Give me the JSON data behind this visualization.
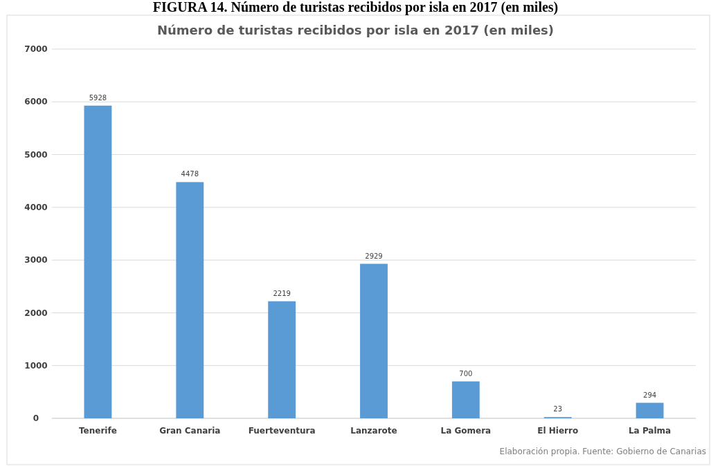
{
  "chart_data": {
    "type": "bar",
    "title": "FIGURA 14. Número de turistas recibidos por isla en 2017 (en miles)",
    "subtitle": "Número de turistas recibidos por isla en 2017 (en miles)",
    "categories": [
      "Tenerife",
      "Gran Canaria",
      "Fuerteventura",
      "Lanzarote",
      "La Gomera",
      "El Hierro",
      "La Palma"
    ],
    "values": [
      5928,
      4478,
      2219,
      2929,
      700,
      23,
      294
    ],
    "color": "#5b9bd5",
    "ylim": [
      0,
      7000
    ],
    "yticks": [
      0,
      1000,
      2000,
      3000,
      4000,
      5000,
      6000,
      7000
    ],
    "grid": "y",
    "data_labels": true,
    "annotations": [
      "Elaboración propia. Fuente: Gobierno de Canarias"
    ]
  }
}
